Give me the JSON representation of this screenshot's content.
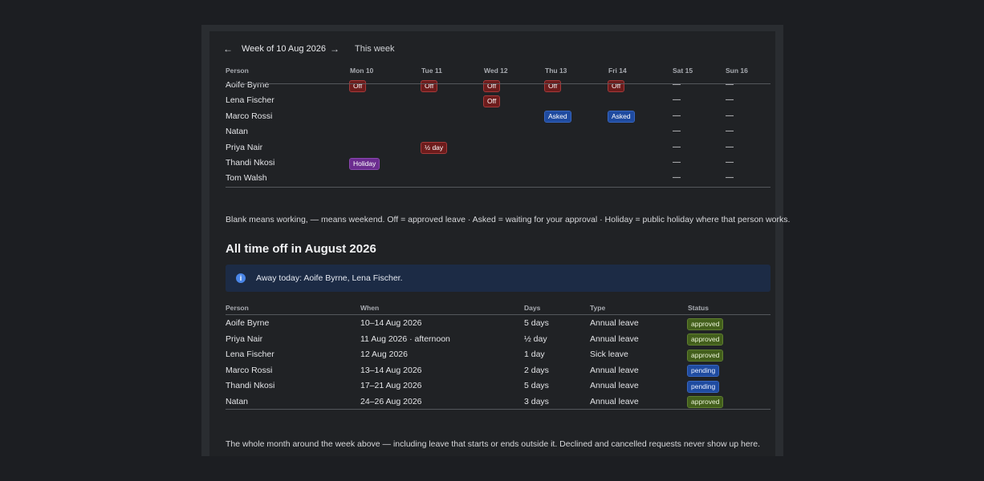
{
  "week_nav": {
    "prev_icon": "arrow-left-icon",
    "prev_glyph": "←",
    "label": "Week of 10 Aug 2026",
    "next_icon": "arrow-right-icon",
    "next_glyph": "→",
    "this_week": "This week"
  },
  "week_table": {
    "headers": [
      "Person",
      "Mon 10",
      "Tue 11",
      "Wed 12",
      "Thu 13",
      "Fri 14",
      "Sat 15",
      "Sun 16"
    ],
    "rows": [
      {
        "person": "Aoife Byrne",
        "cells": [
          "Off",
          "Off",
          "Off",
          "Off",
          "Off",
          "—",
          "—"
        ]
      },
      {
        "person": "Lena Fischer",
        "cells": [
          "",
          "",
          "Off",
          "",
          "",
          "—",
          "—"
        ]
      },
      {
        "person": "Marco Rossi",
        "cells": [
          "",
          "",
          "",
          "Asked",
          "Asked",
          "—",
          "—"
        ]
      },
      {
        "person": "Natan",
        "cells": [
          "",
          "",
          "",
          "",
          "",
          "—",
          "—"
        ]
      },
      {
        "person": "Priya Nair",
        "cells": [
          "",
          "½ day",
          "",
          "",
          "",
          "—",
          "—"
        ]
      },
      {
        "person": "Thandi Nkosi",
        "cells": [
          "Holiday",
          "",
          "",
          "",
          "",
          "—",
          "—"
        ]
      },
      {
        "person": "Tom Walsh",
        "cells": [
          "",
          "",
          "",
          "",
          "",
          "—",
          "—"
        ]
      }
    ]
  },
  "legend_text": "Blank means working, — means weekend. Off = approved leave · Asked = waiting for your approval · Holiday = public holiday where that person works.",
  "month_section": {
    "title": "All time off in August 2026",
    "info_icon": "info-icon",
    "info_glyph": "i",
    "info_text": "Away today: Aoife Byrne, Lena Fischer.",
    "headers": [
      "Person",
      "When",
      "Days",
      "Type",
      "Status"
    ],
    "rows": [
      {
        "person": "Aoife Byrne",
        "when": "10–14 Aug 2026",
        "days": "5 days",
        "type": "Annual leave",
        "status": "approved"
      },
      {
        "person": "Priya Nair",
        "when": "11 Aug 2026 · afternoon",
        "days": "½ day",
        "type": "Annual leave",
        "status": "approved"
      },
      {
        "person": "Lena Fischer",
        "when": "12 Aug 2026",
        "days": "1 day",
        "type": "Sick leave",
        "status": "approved"
      },
      {
        "person": "Marco Rossi",
        "when": "13–14 Aug 2026",
        "days": "2 days",
        "type": "Annual leave",
        "status": "pending"
      },
      {
        "person": "Thandi Nkosi",
        "when": "17–21 Aug 2026",
        "days": "5 days",
        "type": "Annual leave",
        "status": "pending"
      },
      {
        "person": "Natan",
        "when": "24–26 Aug 2026",
        "days": "3 days",
        "type": "Annual leave",
        "status": "approved"
      }
    ],
    "footnote": "The whole month around the week above — including leave that starts or ends outside it. Declined and cancelled requests never show up here."
  },
  "colors": {
    "off": "#6d1c1c",
    "asked": "#1f4ba0",
    "holiday": "#6b2c8f",
    "approved": "#435f1c",
    "pending": "#1f4ba0",
    "info_background": "#1c2b45"
  }
}
